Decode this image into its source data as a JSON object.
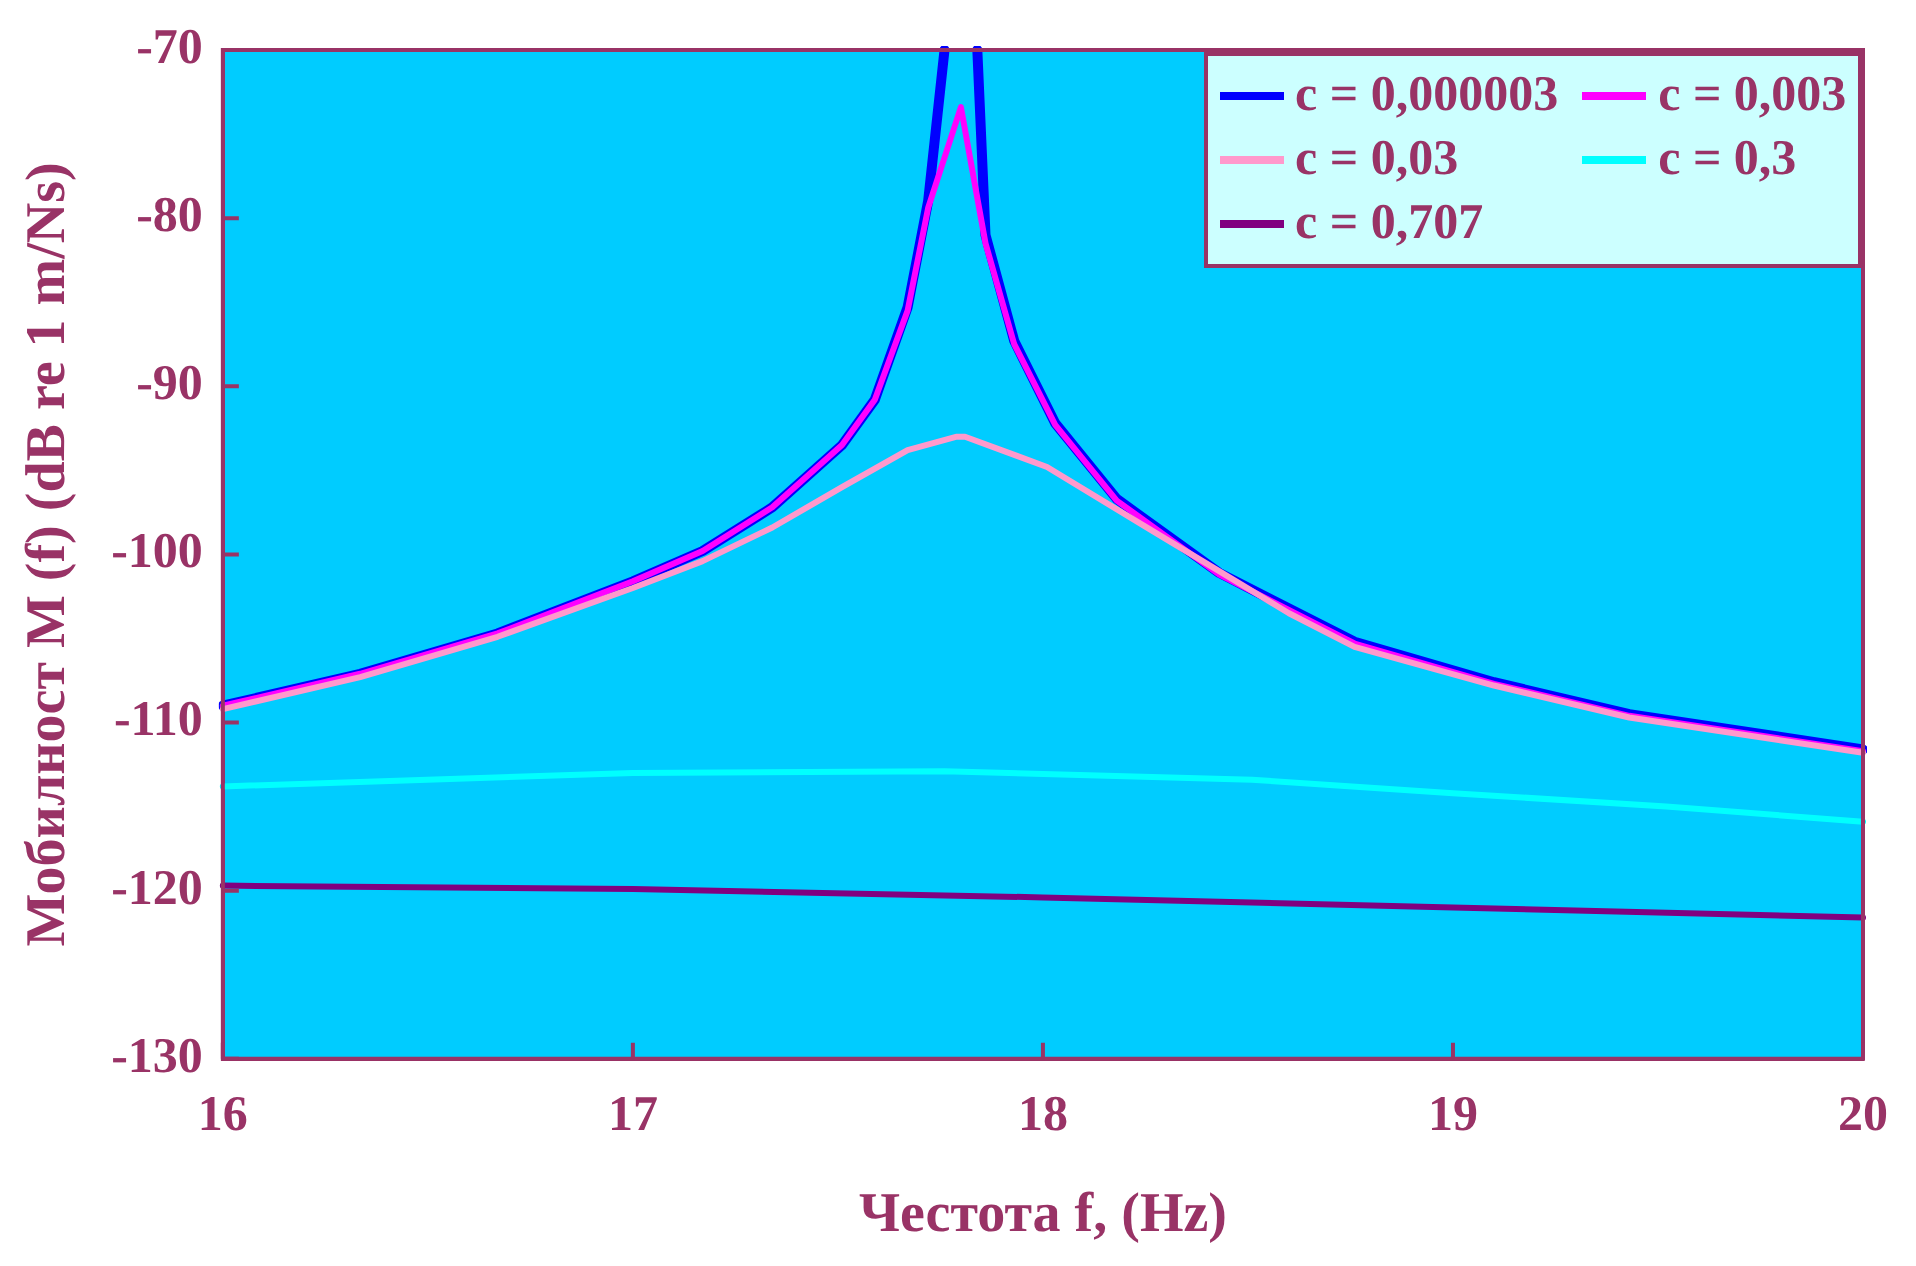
{
  "chart_data": {
    "type": "line",
    "xlabel": "Честота f, (Hz)",
    "ylabel": "Мобилност M (f) (dB re 1 m/Ns)",
    "xlim": [
      16,
      20
    ],
    "xticks": [
      16,
      17,
      18,
      19,
      20
    ],
    "ylim": [
      -130,
      -70
    ],
    "yticks": [
      -130,
      -120,
      -110,
      -100,
      -90,
      -80,
      -70
    ],
    "grid": false,
    "legend": "top right",
    "marker": "none",
    "line_style": "solid",
    "series": [
      {
        "name": "c = 0,000003",
        "color": "#0000ff",
        "x": [
          16,
          16.335,
          16.67,
          17.0,
          17.17,
          17.34,
          17.51,
          17.59,
          17.67,
          17.72,
          17.76,
          17.8,
          17.84,
          17.86,
          17.93,
          18.03,
          18.18,
          18.43,
          18.76,
          19.1,
          19.43,
          20
        ],
        "values": [
          -109.0,
          -107.1,
          -104.7,
          -101.6,
          -99.8,
          -97.2,
          -93.5,
          -90.8,
          -85.3,
          -79.0,
          -70,
          null,
          -70,
          -81.0,
          -87.3,
          -92.2,
          -96.7,
          -101.1,
          -105.2,
          -107.6,
          -109.5,
          -111.6
        ]
      },
      {
        "name": "c = 0,003",
        "color": "#ff00ff",
        "x": [
          16,
          16.335,
          16.67,
          17.0,
          17.17,
          17.34,
          17.51,
          17.59,
          17.67,
          17.72,
          17.8,
          17.86,
          17.93,
          18.03,
          18.18,
          18.43,
          18.76,
          19.1,
          19.43,
          20
        ],
        "values": [
          -109.0,
          -107.1,
          -104.7,
          -101.6,
          -99.8,
          -97.2,
          -93.5,
          -90.8,
          -85.5,
          -79.4,
          -73.4,
          -81.5,
          -87.5,
          -92.3,
          -96.8,
          -101.2,
          -105.3,
          -107.7,
          -109.6,
          -111.7
        ]
      },
      {
        "name": "c = 0,03",
        "color": "#ff99cc",
        "x": [
          16,
          16.335,
          16.67,
          17.0,
          17.17,
          17.34,
          17.51,
          17.67,
          17.79,
          17.81,
          18.01,
          18.26,
          18.6,
          18.76,
          19.1,
          19.43,
          20
        ],
        "values": [
          -109.2,
          -107.3,
          -104.9,
          -102.0,
          -100.4,
          -98.4,
          -96.0,
          -93.8,
          -93.0,
          -93.0,
          -94.8,
          -98.5,
          -103.5,
          -105.5,
          -107.8,
          -109.7,
          -111.8
        ]
      },
      {
        "name": "c = 0,3",
        "color": "#00ffff",
        "x": [
          16,
          17.0,
          17.76,
          18.51,
          19.0,
          19.52,
          20
        ],
        "values": [
          -113.8,
          -113.0,
          -112.9,
          -113.4,
          -114.2,
          -115.0,
          -115.9
        ]
      },
      {
        "name": "c = 0,707",
        "color": "#800080",
        "x": [
          16,
          17.0,
          18.0,
          19.0,
          20
        ],
        "values": [
          -119.7,
          -119.9,
          -120.4,
          -121.0,
          -121.6
        ]
      }
    ]
  }
}
